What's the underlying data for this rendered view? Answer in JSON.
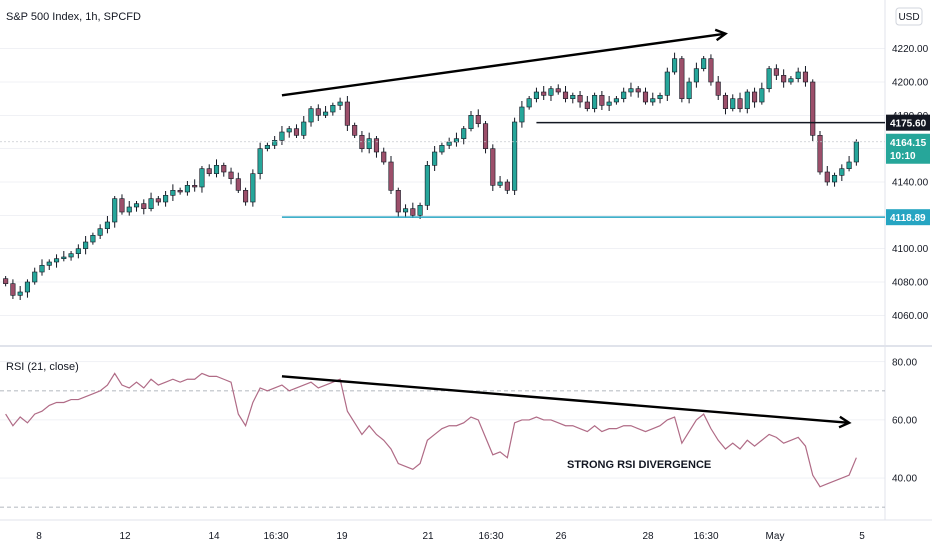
{
  "header": {
    "title": "S&P 500 Index, 1h, SPCFD",
    "currency": "USD",
    "rsi_title": "RSI (21, close)"
  },
  "colors": {
    "up": "#26a69a",
    "down": "#9c4f6a",
    "support": "#26a5c2",
    "resistance": "#131722",
    "rsi_line": "#b06b86",
    "grid": "#e0e3eb",
    "current_badge": "#26a69a",
    "level_badge_dark": "#131722"
  },
  "chart_data": [
    {
      "type": "candlestick",
      "title": "S&P 500 Index, 1h, SPCFD",
      "ylabel": "USD",
      "ylim": [
        4050,
        4230
      ],
      "y_ticks": [
        "4060.00",
        "4080.00",
        "4100.00",
        "4120.00",
        "4140.00",
        "4160.00",
        "4180.00",
        "4200.00",
        "4220.00"
      ],
      "x_ticks": [
        "8",
        "12",
        "14",
        "16:30",
        "19",
        "21",
        "16:30",
        "26",
        "28",
        "16:30",
        "May",
        "5"
      ],
      "current_price": {
        "value": 4164.15,
        "label": "4164.15",
        "time_label": "10:10"
      },
      "levels": [
        {
          "name": "resistance",
          "value": 4175.6,
          "label": "4175.60"
        },
        {
          "name": "support",
          "value": 4118.89,
          "label": "4118.89"
        }
      ],
      "close": [
        4079,
        4072,
        4074,
        4080,
        4086,
        4090,
        4092,
        4094,
        4095,
        4097,
        4100,
        4104,
        4108,
        4112,
        4116,
        4130,
        4122,
        4125,
        4127,
        4124,
        4130,
        4128,
        4132,
        4135,
        4134,
        4138,
        4137,
        4148,
        4145,
        4150,
        4146,
        4142,
        4135,
        4128,
        4145,
        4160,
        4162,
        4165,
        4170,
        4172,
        4168,
        4176,
        4184,
        4180,
        4182,
        4186,
        4188,
        4174,
        4168,
        4160,
        4166,
        4158,
        4152,
        4135,
        4122,
        4124,
        4120,
        4126,
        4150,
        4158,
        4162,
        4164,
        4166,
        4172,
        4180,
        4175,
        4160,
        4138,
        4140,
        4135,
        4176,
        4185,
        4190,
        4194,
        4192,
        4196,
        4194,
        4190,
        4192,
        4188,
        4184,
        4192,
        4186,
        4188,
        4190,
        4194,
        4196,
        4194,
        4188,
        4190,
        4192,
        4206,
        4214,
        4190,
        4200,
        4208,
        4214,
        4200,
        4192,
        4184,
        4190,
        4184,
        4194,
        4188,
        4196,
        4208,
        4204,
        4200,
        4202,
        4206,
        4200,
        4168,
        4146,
        4140,
        4144,
        4148,
        4152,
        4164
      ],
      "rsi": {
        "title": "RSI (21, close)",
        "ylim": [
          29,
          82
        ],
        "ticks": [
          "40.00",
          "60.00",
          "80.00"
        ],
        "bands": [
          30,
          70
        ],
        "annotation": "STRONG RSI DIVERGENCE",
        "values": [
          62,
          58,
          61,
          59,
          62,
          63,
          65,
          66,
          66,
          67,
          67,
          68,
          69,
          70,
          72,
          76,
          72,
          71,
          73,
          71,
          74,
          72,
          73,
          74,
          73,
          74,
          74,
          76,
          75,
          75,
          74,
          73,
          62,
          58,
          66,
          71,
          70,
          71,
          72,
          70,
          71,
          72,
          73,
          71,
          72,
          73,
          74,
          63,
          59,
          55,
          58,
          55,
          53,
          50,
          45,
          44,
          43,
          45,
          53,
          55,
          57,
          58,
          58,
          59,
          61,
          60,
          54,
          48,
          49,
          47,
          59,
          60,
          60,
          61,
          60,
          60,
          59,
          58,
          58,
          57,
          56,
          58,
          56,
          57,
          57,
          58,
          58,
          57,
          56,
          57,
          58,
          60,
          61,
          52,
          56,
          60,
          62,
          57,
          53,
          50,
          52,
          50,
          53,
          51,
          53,
          55,
          54,
          52,
          53,
          54,
          51,
          41,
          37,
          38,
          39,
          40,
          41,
          47
        ]
      }
    }
  ]
}
